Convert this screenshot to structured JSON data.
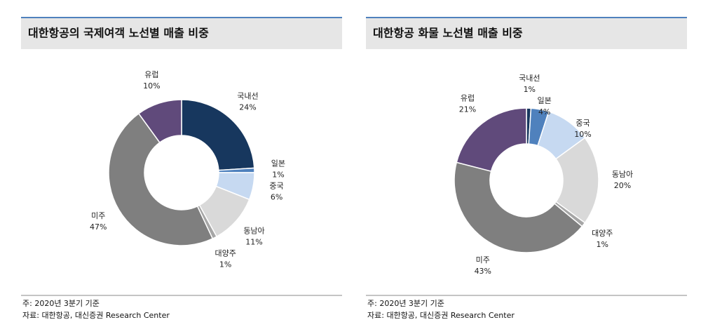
{
  "chart_data": [
    {
      "type": "donut",
      "title": "대한항공의 국제여객 노선별 매출 비중",
      "categories": [
        "국내선",
        "일본",
        "중국",
        "동남아",
        "대양주",
        "미주",
        "유럽"
      ],
      "values": [
        24,
        1,
        6,
        11,
        1,
        47,
        10
      ],
      "value_labels": [
        "24%",
        "1%",
        "6%",
        "11%",
        "1%",
        "47%",
        "10%"
      ],
      "colors": [
        "#17375e",
        "#4f81bd",
        "#c6d9f1",
        "#d9d9d9",
        "#a6a6a6",
        "#7f7f7f",
        "#604a7b"
      ],
      "note": "주: 2020년 3분기 기준",
      "source": "자료: 대한항공, 대신증권 Research Center"
    },
    {
      "type": "donut",
      "title": "대한항공 화물 노선별 매출 비중",
      "categories": [
        "국내선",
        "일본",
        "중국",
        "동남아",
        "대양주",
        "미주",
        "유럽"
      ],
      "values": [
        1,
        4,
        10,
        20,
        1,
        43,
        21
      ],
      "value_labels": [
        "1%",
        "4%",
        "10%",
        "20%",
        "1%",
        "43%",
        "21%"
      ],
      "colors": [
        "#17375e",
        "#4f81bd",
        "#c6d9f1",
        "#d9d9d9",
        "#a6a6a6",
        "#7f7f7f",
        "#604a7b"
      ],
      "note": "주: 2020년 3분기 기준",
      "source": "자료: 대한항공, 대신증권 Research Center"
    }
  ]
}
